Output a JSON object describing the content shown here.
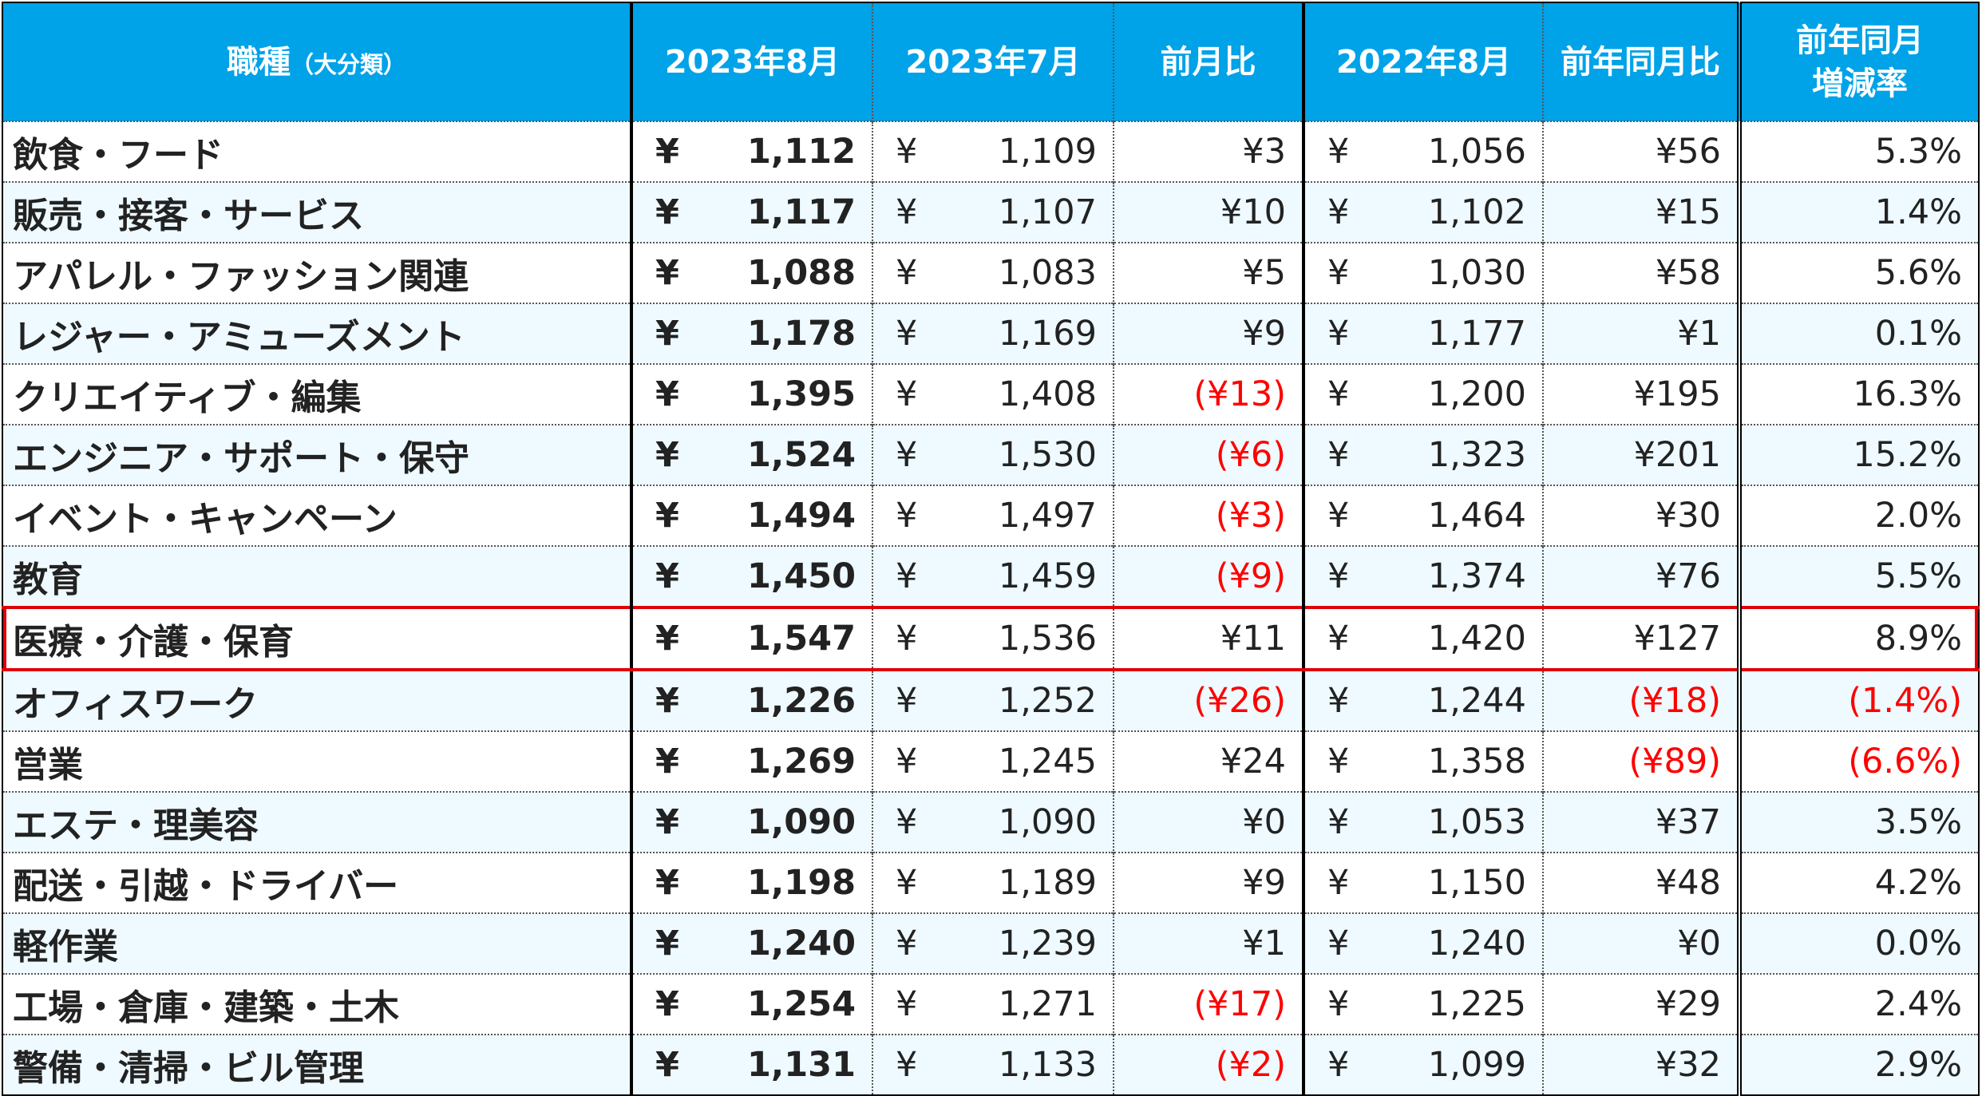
{
  "header": {
    "col_job": "職種",
    "col_job_sub": "（大分類）",
    "col_aug2023": "2023年8月",
    "col_jul2023": "2023年7月",
    "col_mom": "前月比",
    "col_aug2022": "2022年8月",
    "col_yoy": "前年同月比",
    "col_rate_line1": "前年同月",
    "col_rate_line2": "増減率"
  },
  "currency_symbol": "¥",
  "colors": {
    "header_bg": "#00a2e8",
    "negative": "#ff0000",
    "highlight_border": "#e0000a",
    "alt_row": "#eefaff"
  },
  "rows": [
    {
      "name": "飲食・フード",
      "aug2023": "1,112",
      "jul2023": "1,109",
      "mom": "¥3",
      "mom_neg": false,
      "aug2022": "1,056",
      "yoy": "¥56",
      "yoy_neg": false,
      "rate": "5.3%",
      "rate_neg": false
    },
    {
      "name": "販売・接客・サービス",
      "aug2023": "1,117",
      "jul2023": "1,107",
      "mom": "¥10",
      "mom_neg": false,
      "aug2022": "1,102",
      "yoy": "¥15",
      "yoy_neg": false,
      "rate": "1.4%",
      "rate_neg": false
    },
    {
      "name": "アパレル・ファッション関連",
      "aug2023": "1,088",
      "jul2023": "1,083",
      "mom": "¥5",
      "mom_neg": false,
      "aug2022": "1,030",
      "yoy": "¥58",
      "yoy_neg": false,
      "rate": "5.6%",
      "rate_neg": false
    },
    {
      "name": "レジャー・アミューズメント",
      "aug2023": "1,178",
      "jul2023": "1,169",
      "mom": "¥9",
      "mom_neg": false,
      "aug2022": "1,177",
      "yoy": "¥1",
      "yoy_neg": false,
      "rate": "0.1%",
      "rate_neg": false
    },
    {
      "name": "クリエイティブ・編集",
      "aug2023": "1,395",
      "jul2023": "1,408",
      "mom": "(¥13)",
      "mom_neg": true,
      "aug2022": "1,200",
      "yoy": "¥195",
      "yoy_neg": false,
      "rate": "16.3%",
      "rate_neg": false
    },
    {
      "name": "エンジニア・サポート・保守",
      "aug2023": "1,524",
      "jul2023": "1,530",
      "mom": "(¥6)",
      "mom_neg": true,
      "aug2022": "1,323",
      "yoy": "¥201",
      "yoy_neg": false,
      "rate": "15.2%",
      "rate_neg": false
    },
    {
      "name": "イベント・キャンペーン",
      "aug2023": "1,494",
      "jul2023": "1,497",
      "mom": "(¥3)",
      "mom_neg": true,
      "aug2022": "1,464",
      "yoy": "¥30",
      "yoy_neg": false,
      "rate": "2.0%",
      "rate_neg": false
    },
    {
      "name": "教育",
      "aug2023": "1,450",
      "jul2023": "1,459",
      "mom": "(¥9)",
      "mom_neg": true,
      "aug2022": "1,374",
      "yoy": "¥76",
      "yoy_neg": false,
      "rate": "5.5%",
      "rate_neg": false
    },
    {
      "name": "医療・介護・保育",
      "aug2023": "1,547",
      "jul2023": "1,536",
      "mom": "¥11",
      "mom_neg": false,
      "aug2022": "1,420",
      "yoy": "¥127",
      "yoy_neg": false,
      "rate": "8.9%",
      "rate_neg": false,
      "highlight": true
    },
    {
      "name": "オフィスワーク",
      "aug2023": "1,226",
      "jul2023": "1,252",
      "mom": "(¥26)",
      "mom_neg": true,
      "aug2022": "1,244",
      "yoy": "(¥18)",
      "yoy_neg": true,
      "rate": "(1.4%)",
      "rate_neg": true
    },
    {
      "name": "営業",
      "aug2023": "1,269",
      "jul2023": "1,245",
      "mom": "¥24",
      "mom_neg": false,
      "aug2022": "1,358",
      "yoy": "(¥89)",
      "yoy_neg": true,
      "rate": "(6.6%)",
      "rate_neg": true
    },
    {
      "name": "エステ・理美容",
      "aug2023": "1,090",
      "jul2023": "1,090",
      "mom": "¥0",
      "mom_neg": false,
      "aug2022": "1,053",
      "yoy": "¥37",
      "yoy_neg": false,
      "rate": "3.5%",
      "rate_neg": false
    },
    {
      "name": "配送・引越・ドライバー",
      "aug2023": "1,198",
      "jul2023": "1,189",
      "mom": "¥9",
      "mom_neg": false,
      "aug2022": "1,150",
      "yoy": "¥48",
      "yoy_neg": false,
      "rate": "4.2%",
      "rate_neg": false
    },
    {
      "name": "軽作業",
      "aug2023": "1,240",
      "jul2023": "1,239",
      "mom": "¥1",
      "mom_neg": false,
      "aug2022": "1,240",
      "yoy": "¥0",
      "yoy_neg": false,
      "rate": "0.0%",
      "rate_neg": false
    },
    {
      "name": "工場・倉庫・建築・土木",
      "aug2023": "1,254",
      "jul2023": "1,271",
      "mom": "(¥17)",
      "mom_neg": true,
      "aug2022": "1,225",
      "yoy": "¥29",
      "yoy_neg": false,
      "rate": "2.4%",
      "rate_neg": false
    },
    {
      "name": "警備・清掃・ビル管理",
      "aug2023": "1,131",
      "jul2023": "1,133",
      "mom": "(¥2)",
      "mom_neg": true,
      "aug2022": "1,099",
      "yoy": "¥32",
      "yoy_neg": false,
      "rate": "2.9%",
      "rate_neg": false
    }
  ]
}
